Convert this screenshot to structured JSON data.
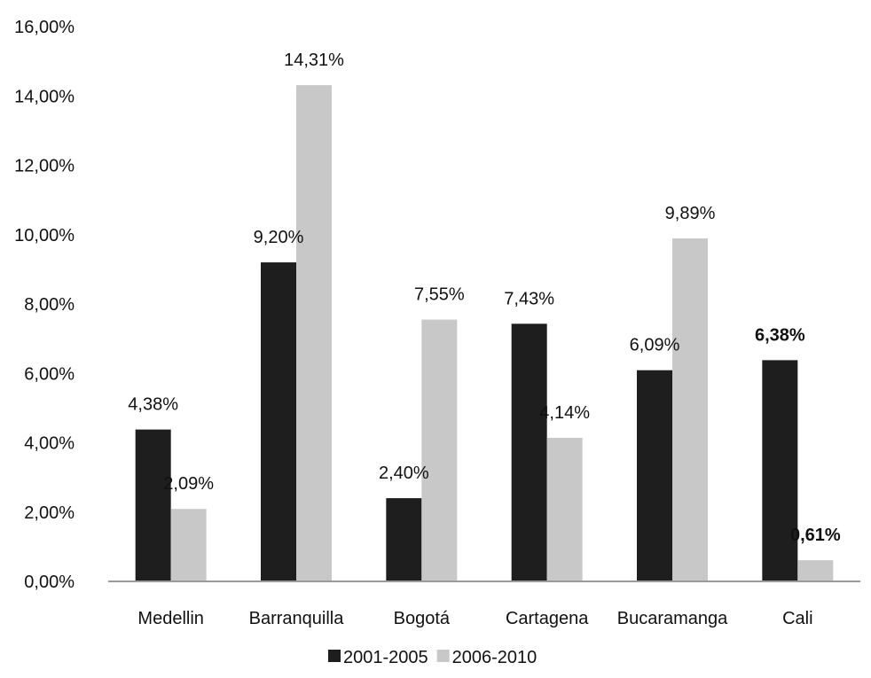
{
  "chart_data": {
    "type": "bar",
    "title": "",
    "xlabel": "",
    "ylabel": "",
    "ylim": [
      0,
      16
    ],
    "yticks": [
      "0,00%",
      "2,00%",
      "4,00%",
      "6,00%",
      "8,00%",
      "10,00%",
      "12,00%",
      "14,00%",
      "16,00%"
    ],
    "grid": false,
    "legend_position": "bottom",
    "categories": [
      "Medellin",
      "Barranquilla",
      "Bogotá",
      "Cartagena",
      "Bucaramanga",
      "Cali"
    ],
    "series": [
      {
        "name": "2001-2005",
        "color": "#1e1e1e",
        "values": [
          4.38,
          9.2,
          2.4,
          7.43,
          6.09,
          6.38
        ],
        "labels": [
          "4,38%",
          "9,20%",
          "2,40%",
          "7,43%",
          "6,09%",
          "6,38%"
        ],
        "bold_labels": [
          false,
          false,
          false,
          false,
          false,
          true
        ]
      },
      {
        "name": "2006-2010",
        "color": "#c8c8c8",
        "values": [
          2.09,
          14.31,
          7.55,
          4.14,
          9.89,
          0.61
        ],
        "labels": [
          "2,09%",
          "14,31%",
          "7,55%",
          "4,14%",
          "9,89%",
          "0,61%"
        ],
        "bold_labels": [
          false,
          false,
          false,
          false,
          false,
          true
        ]
      }
    ]
  }
}
